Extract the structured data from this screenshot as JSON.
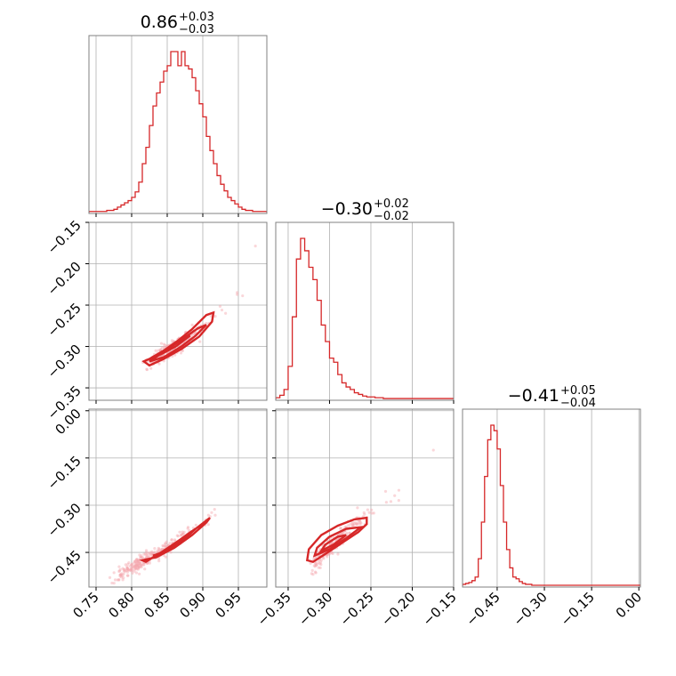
{
  "chart_data": {
    "type": "corner",
    "color": "#d62728",
    "scatter_color": "#f4a6ae",
    "grid": true,
    "parameters": [
      {
        "index": 0,
        "title": {
          "median": "0.86",
          "plus": "+0.03",
          "minus": "−0.03"
        },
        "range": [
          0.74,
          0.99
        ],
        "ticks": [
          0.75,
          0.8,
          0.85,
          0.9,
          0.95
        ],
        "tick_labels": [
          "0.75",
          "0.80",
          "0.85",
          "0.90",
          "0.95"
        ],
        "hist": {
          "edges_start": 0.74,
          "bin_width": 0.005,
          "counts": [
            1,
            1,
            1,
            1,
            1,
            2,
            2,
            3,
            5,
            7,
            9,
            11,
            14,
            19,
            28,
            45,
            60,
            80,
            98,
            110,
            120,
            130,
            135,
            148,
            148,
            135,
            148,
            135,
            132,
            124,
            112,
            100,
            88,
            70,
            57,
            45,
            34,
            26,
            20,
            14,
            11,
            8,
            5,
            3,
            2,
            2,
            1,
            1,
            1,
            1
          ]
        }
      },
      {
        "index": 1,
        "title": {
          "median": "−0.30",
          "plus": "+0.02",
          "minus": "−0.02"
        },
        "range": [
          -0.365,
          -0.15
        ],
        "ticks": [
          -0.35,
          -0.3,
          -0.25,
          -0.2,
          -0.15
        ],
        "tick_labels": [
          "−0.35",
          "−0.30",
          "−0.25",
          "−0.20",
          "−0.15"
        ],
        "hist": {
          "edges_start": -0.365,
          "bin_width": 0.005,
          "counts": [
            2,
            5,
            12,
            40,
            100,
            170,
            195,
            180,
            160,
            145,
            120,
            90,
            70,
            50,
            45,
            30,
            20,
            15,
            12,
            8,
            6,
            4,
            3,
            3,
            2,
            2,
            1,
            1,
            1,
            1,
            1,
            1,
            1,
            1,
            1,
            1,
            1,
            1,
            1,
            1,
            1,
            1,
            1
          ]
        }
      },
      {
        "index": 2,
        "title": {
          "median": "−0.41",
          "plus": "+0.05",
          "minus": "−0.04"
        },
        "range": [
          -0.56,
          0.005
        ],
        "ticks": [
          -0.45,
          -0.3,
          -0.15,
          0.0
        ],
        "tick_labels": [
          "−0.45",
          "−0.30",
          "−0.15",
          "0.00"
        ],
        "y_tick_labels": [
          "−0.45",
          "−0.30",
          "−0.15",
          "0.00"
        ],
        "hist": {
          "edges_start": -0.56,
          "bin_width": 0.01,
          "counts": [
            2,
            3,
            4,
            6,
            10,
            30,
            70,
            120,
            160,
            176,
            170,
            150,
            110,
            70,
            40,
            20,
            10,
            8,
            5,
            3,
            2,
            2,
            1,
            1,
            1,
            1,
            1,
            1,
            1,
            1,
            1,
            1,
            1,
            1,
            1,
            1,
            1,
            1,
            1,
            1,
            1,
            1,
            1,
            1,
            1,
            1,
            1,
            1,
            1,
            1,
            1,
            1,
            1,
            1,
            1,
            1,
            1
          ]
        }
      }
    ],
    "pairs": [
      {
        "x_param": 0,
        "y_param": 1,
        "ridge": [
          [
            0.815,
            -0.323
          ],
          [
            0.84,
            -0.31
          ],
          [
            0.86,
            -0.3
          ],
          [
            0.88,
            -0.29
          ],
          [
            0.9,
            -0.275
          ],
          [
            0.92,
            -0.26
          ],
          [
            0.95,
            -0.235
          ],
          [
            0.99,
            -0.17
          ]
        ],
        "contour_levels": [
          [
            [
              0.817,
              -0.318
            ],
            [
              0.825,
              -0.323
            ],
            [
              0.845,
              -0.315
            ],
            [
              0.87,
              -0.303
            ],
            [
              0.895,
              -0.288
            ],
            [
              0.913,
              -0.27
            ],
            [
              0.915,
              -0.259
            ],
            [
              0.905,
              -0.262
            ],
            [
              0.885,
              -0.279
            ],
            [
              0.865,
              -0.293
            ],
            [
              0.845,
              -0.305
            ],
            [
              0.825,
              -0.315
            ],
            [
              0.817,
              -0.318
            ]
          ],
          [
            [
              0.825,
              -0.318
            ],
            [
              0.845,
              -0.313
            ],
            [
              0.87,
              -0.3
            ],
            [
              0.89,
              -0.287
            ],
            [
              0.905,
              -0.274
            ],
            [
              0.893,
              -0.278
            ],
            [
              0.87,
              -0.292
            ],
            [
              0.848,
              -0.305
            ],
            [
              0.825,
              -0.318
            ]
          ],
          [
            [
              0.84,
              -0.31
            ],
            [
              0.862,
              -0.3
            ],
            [
              0.882,
              -0.287
            ],
            [
              0.875,
              -0.288
            ],
            [
              0.855,
              -0.3
            ],
            [
              0.84,
              -0.31
            ]
          ]
        ]
      },
      {
        "x_param": 0,
        "y_param": 2,
        "ridge": [
          [
            0.77,
            -0.54
          ],
          [
            0.8,
            -0.5
          ],
          [
            0.83,
            -0.46
          ],
          [
            0.86,
            -0.42
          ],
          [
            0.89,
            -0.37
          ],
          [
            0.92,
            -0.32
          ],
          [
            0.95,
            -0.24
          ],
          [
            0.99,
            -0.08
          ]
        ],
        "contour_levels": [
          [
            [
              0.815,
              -0.475
            ],
            [
              0.835,
              -0.465
            ],
            [
              0.86,
              -0.435
            ],
            [
              0.885,
              -0.395
            ],
            [
              0.905,
              -0.355
            ],
            [
              0.91,
              -0.34
            ],
            [
              0.893,
              -0.37
            ],
            [
              0.868,
              -0.41
            ],
            [
              0.845,
              -0.445
            ],
            [
              0.82,
              -0.48
            ],
            [
              0.815,
              -0.475
            ]
          ],
          [
            [
              0.83,
              -0.46
            ],
            [
              0.85,
              -0.445
            ],
            [
              0.873,
              -0.41
            ],
            [
              0.89,
              -0.375
            ],
            [
              0.88,
              -0.39
            ],
            [
              0.86,
              -0.425
            ],
            [
              0.84,
              -0.455
            ],
            [
              0.83,
              -0.46
            ]
          ],
          [
            [
              0.845,
              -0.445
            ],
            [
              0.86,
              -0.425
            ],
            [
              0.877,
              -0.395
            ],
            [
              0.868,
              -0.41
            ],
            [
              0.852,
              -0.435
            ],
            [
              0.845,
              -0.445
            ]
          ]
        ]
      },
      {
        "x_param": 1,
        "y_param": 2,
        "ridge": [
          [
            -0.325,
            -0.52
          ],
          [
            -0.31,
            -0.46
          ],
          [
            -0.295,
            -0.42
          ],
          [
            -0.28,
            -0.38
          ],
          [
            -0.26,
            -0.34
          ],
          [
            -0.24,
            -0.3
          ],
          [
            -0.21,
            -0.24
          ],
          [
            -0.17,
            -0.12
          ]
        ],
        "contour_levels": [
          [
            [
              -0.327,
              -0.475
            ],
            [
              -0.32,
              -0.48
            ],
            [
              -0.305,
              -0.455
            ],
            [
              -0.285,
              -0.42
            ],
            [
              -0.265,
              -0.385
            ],
            [
              -0.255,
              -0.36
            ],
            [
              -0.255,
              -0.34
            ],
            [
              -0.27,
              -0.345
            ],
            [
              -0.29,
              -0.365
            ],
            [
              -0.31,
              -0.395
            ],
            [
              -0.325,
              -0.44
            ],
            [
              -0.327,
              -0.475
            ]
          ],
          [
            [
              -0.318,
              -0.46
            ],
            [
              -0.3,
              -0.44
            ],
            [
              -0.28,
              -0.405
            ],
            [
              -0.262,
              -0.37
            ],
            [
              -0.28,
              -0.375
            ],
            [
              -0.3,
              -0.4
            ],
            [
              -0.315,
              -0.435
            ],
            [
              -0.318,
              -0.46
            ]
          ],
          [
            [
              -0.31,
              -0.445
            ],
            [
              -0.295,
              -0.425
            ],
            [
              -0.28,
              -0.395
            ],
            [
              -0.29,
              -0.4
            ],
            [
              -0.305,
              -0.425
            ],
            [
              -0.31,
              -0.445
            ]
          ]
        ]
      }
    ]
  }
}
